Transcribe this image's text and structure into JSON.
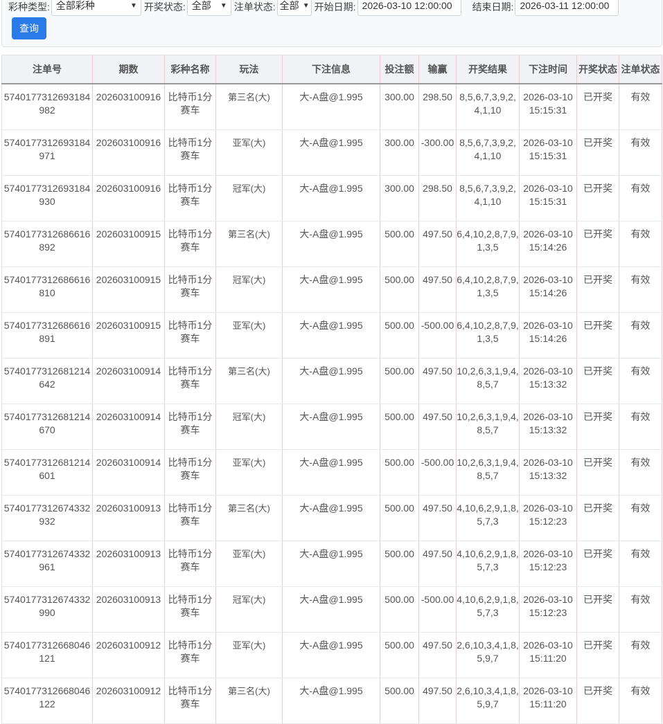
{
  "filters": {
    "lottery_type_label": "彩种类型:",
    "lottery_type_value": "全部彩种",
    "draw_status_label": "开奖状态:",
    "draw_status_value": "全部",
    "bet_status_label": "注单状态:",
    "bet_status_value": "全部",
    "start_date_label": "开始日期:",
    "start_date_value": "2026-03-10 12:00:00",
    "end_date_label": "结束日期:",
    "end_date_value": "2026-03-11 12:00:00",
    "query_label": "查询"
  },
  "table": {
    "headers": [
      "注单号",
      "期数",
      "彩种名称",
      "玩法",
      "下注信息",
      "投注额",
      "输赢",
      "开奖结果",
      "下注时间",
      "开奖状态",
      "注单状态"
    ],
    "rows": [
      [
        "5740177312693184982",
        "202603100916",
        "比特币1分赛车",
        "第三名(大)",
        "大-A盘@1.995",
        "300.00",
        "298.50",
        "8,5,6,7,3,9,2,4,1,10",
        "2026-03-10 15:15:31",
        "已开奖",
        "有效"
      ],
      [
        "5740177312693184971",
        "202603100916",
        "比特币1分赛车",
        "亚军(大)",
        "大-A盘@1.995",
        "300.00",
        "-300.00",
        "8,5,6,7,3,9,2,4,1,10",
        "2026-03-10 15:15:31",
        "已开奖",
        "有效"
      ],
      [
        "5740177312693184930",
        "202603100916",
        "比特币1分赛车",
        "冠军(大)",
        "大-A盘@1.995",
        "300.00",
        "298.50",
        "8,5,6,7,3,9,2,4,1,10",
        "2026-03-10 15:15:31",
        "已开奖",
        "有效"
      ],
      [
        "5740177312686616892",
        "202603100915",
        "比特币1分赛车",
        "第三名(大)",
        "大-A盘@1.995",
        "500.00",
        "497.50",
        "6,4,10,2,8,7,9,1,3,5",
        "2026-03-10 15:14:26",
        "已开奖",
        "有效"
      ],
      [
        "5740177312686616810",
        "202603100915",
        "比特币1分赛车",
        "冠军(大)",
        "大-A盘@1.995",
        "500.00",
        "497.50",
        "6,4,10,2,8,7,9,1,3,5",
        "2026-03-10 15:14:26",
        "已开奖",
        "有效"
      ],
      [
        "5740177312686616891",
        "202603100915",
        "比特币1分赛车",
        "亚军(大)",
        "大-A盘@1.995",
        "500.00",
        "-500.00",
        "6,4,10,2,8,7,9,1,3,5",
        "2026-03-10 15:14:26",
        "已开奖",
        "有效"
      ],
      [
        "5740177312681214642",
        "202603100914",
        "比特币1分赛车",
        "第三名(大)",
        "大-A盘@1.995",
        "500.00",
        "497.50",
        "10,2,6,3,1,9,4,8,5,7",
        "2026-03-10 15:13:32",
        "已开奖",
        "有效"
      ],
      [
        "5740177312681214670",
        "202603100914",
        "比特币1分赛车",
        "冠军(大)",
        "大-A盘@1.995",
        "500.00",
        "497.50",
        "10,2,6,3,1,9,4,8,5,7",
        "2026-03-10 15:13:32",
        "已开奖",
        "有效"
      ],
      [
        "5740177312681214601",
        "202603100914",
        "比特币1分赛车",
        "亚军(大)",
        "大-A盘@1.995",
        "500.00",
        "-500.00",
        "10,2,6,3,1,9,4,8,5,7",
        "2026-03-10 15:13:32",
        "已开奖",
        "有效"
      ],
      [
        "5740177312674332932",
        "202603100913",
        "比特币1分赛车",
        "第三名(大)",
        "大-A盘@1.995",
        "500.00",
        "497.50",
        "4,10,6,2,9,1,8,5,7,3",
        "2026-03-10 15:12:23",
        "已开奖",
        "有效"
      ],
      [
        "5740177312674332961",
        "202603100913",
        "比特币1分赛车",
        "亚军(大)",
        "大-A盘@1.995",
        "500.00",
        "497.50",
        "4,10,6,2,9,1,8,5,7,3",
        "2026-03-10 15:12:23",
        "已开奖",
        "有效"
      ],
      [
        "5740177312674332990",
        "202603100913",
        "比特币1分赛车",
        "冠军(大)",
        "大-A盘@1.995",
        "500.00",
        "-500.00",
        "4,10,6,2,9,1,8,5,7,3",
        "2026-03-10 15:12:23",
        "已开奖",
        "有效"
      ],
      [
        "5740177312668046121",
        "202603100912",
        "比特币1分赛车",
        "亚军(大)",
        "大-A盘@1.995",
        "500.00",
        "497.50",
        "2,6,10,3,4,1,8,5,9,7",
        "2026-03-10 15:11:20",
        "已开奖",
        "有效"
      ],
      [
        "5740177312668046122",
        "202603100912",
        "比特币1分赛车",
        "第三名(大)",
        "大-A盘@1.995",
        "500.00",
        "497.50",
        "2,6,10,3,4,1,8,5,9,7",
        "2026-03-10 15:11:20",
        "已开奖",
        "有效"
      ]
    ]
  },
  "colors": {
    "primary_button": "#2a7ae9",
    "column_border": "#f5c6cb"
  }
}
